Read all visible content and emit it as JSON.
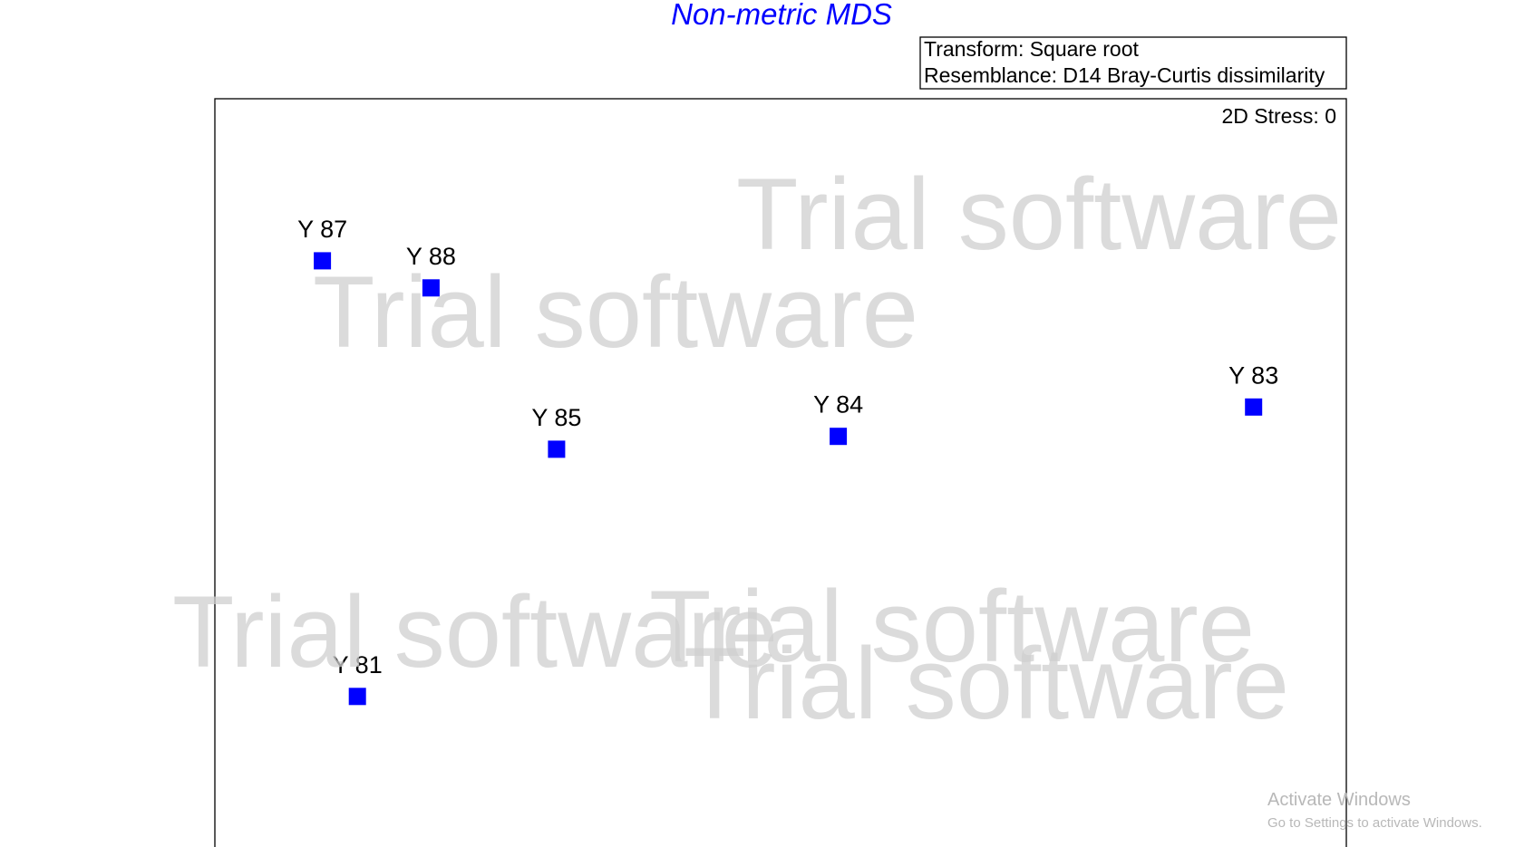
{
  "chart_data": {
    "type": "scatter",
    "title": "Non-metric MDS",
    "transform_label": "Transform: Square root",
    "resemblance_label": "Resemblance: D14 Bray-Curtis dissimilarity",
    "stress_label": "2D Stress: 0",
    "xlabel": "",
    "ylabel": "",
    "grid": false,
    "marker_color": "#0000ff",
    "title_color": "#0000ff",
    "points": [
      {
        "label": "Y 87",
        "x": 0.095,
        "y": 0.785
      },
      {
        "label": "Y 88",
        "x": 0.191,
        "y": 0.749
      },
      {
        "label": "Y 85",
        "x": 0.302,
        "y": 0.535
      },
      {
        "label": "Y 84",
        "x": 0.551,
        "y": 0.552
      },
      {
        "label": "Y 83",
        "x": 0.918,
        "y": 0.591
      },
      {
        "label": "Y 81",
        "x": 0.126,
        "y": 0.207
      }
    ],
    "xlim": [
      0,
      1
    ],
    "ylim": [
      0,
      1
    ]
  },
  "watermarks": [
    "Trial software",
    "Trial software",
    "Trial software",
    "Trial software",
    "Trial software"
  ],
  "os_notice": {
    "title": "Activate Windows",
    "subtitle": "Go to Settings to activate Windows."
  }
}
